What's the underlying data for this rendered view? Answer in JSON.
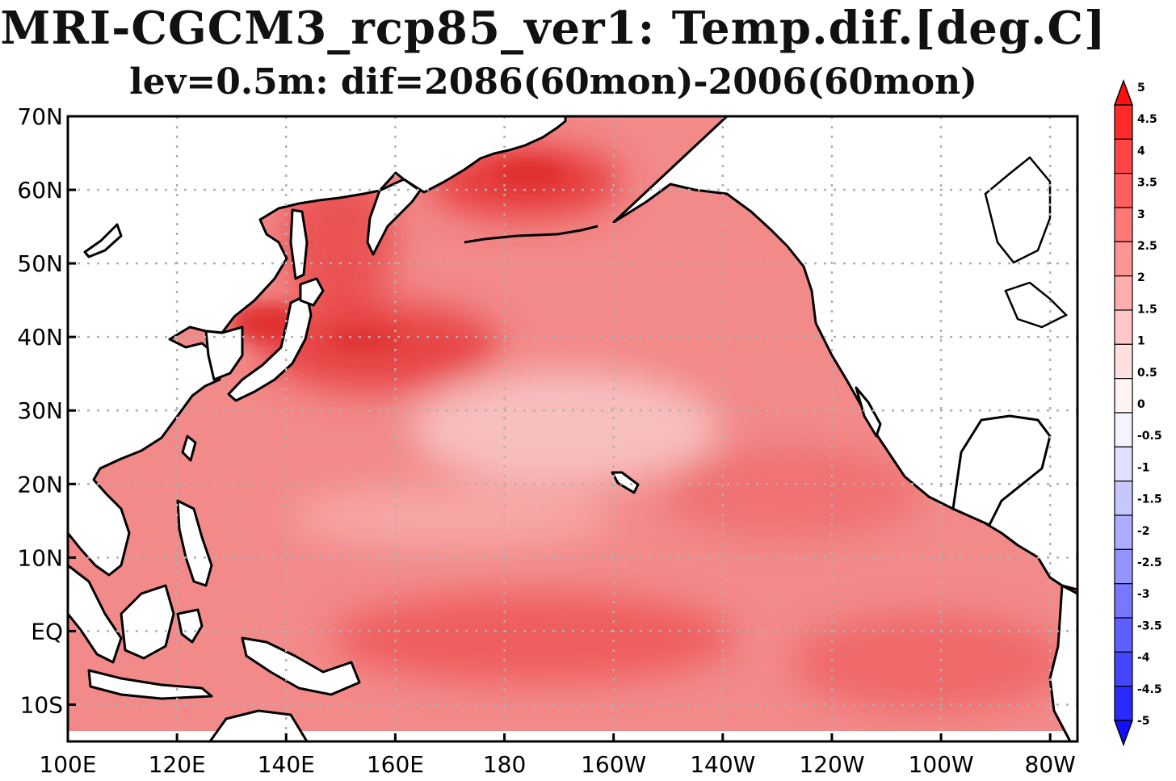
{
  "title": "MRI-CGCM3_rcp85_ver1: Temp.dif.[deg.C]",
  "subtitle": "lev=0.5m: dif=2086(60mon)-2006(60mon)",
  "map": {
    "lon_range": [
      100,
      285
    ],
    "lat_range": [
      -15,
      70
    ],
    "x_ticks": [
      {
        "lon": 100,
        "label": "100E"
      },
      {
        "lon": 120,
        "label": "120E"
      },
      {
        "lon": 140,
        "label": "140E"
      },
      {
        "lon": 160,
        "label": "160E"
      },
      {
        "lon": 180,
        "label": "180"
      },
      {
        "lon": 200,
        "label": "160W"
      },
      {
        "lon": 220,
        "label": "140W"
      },
      {
        "lon": 240,
        "label": "120W"
      },
      {
        "lon": 260,
        "label": "100W"
      },
      {
        "lon": 280,
        "label": "80W"
      }
    ],
    "y_ticks": [
      {
        "lat": 70,
        "label": "70N"
      },
      {
        "lat": 60,
        "label": "60N"
      },
      {
        "lat": 50,
        "label": "50N"
      },
      {
        "lat": 40,
        "label": "40N"
      },
      {
        "lat": 30,
        "label": "30N"
      },
      {
        "lat": 20,
        "label": "20N"
      },
      {
        "lat": 10,
        "label": "10N"
      },
      {
        "lat": 0,
        "label": "EQ"
      },
      {
        "lat": -10,
        "label": "10S"
      }
    ],
    "grid": true,
    "ocean_base_color": "#f38a8a",
    "land_color": "#ffffff"
  },
  "colorbar": {
    "levels": [
      "5",
      "4.5",
      "4",
      "3.5",
      "3",
      "2.5",
      "2",
      "1.5",
      "1",
      "0.5",
      "0",
      "-0.5",
      "-1",
      "-1.5",
      "-2",
      "-2.5",
      "-3",
      "-3.5",
      "-4",
      "-4.5",
      "-5"
    ],
    "colors": [
      "#ff1010",
      "#ff2a2a",
      "#ff4545",
      "#ff5f5f",
      "#ff7878",
      "#ff9494",
      "#ffadad",
      "#ffc7c7",
      "#ffe0e0",
      "#fff4f4",
      "#f4f4ff",
      "#e0e0ff",
      "#c7c7ff",
      "#adadff",
      "#9494ff",
      "#7878ff",
      "#5f5fff",
      "#4545ff",
      "#2a2aff",
      "#1010ff"
    ]
  }
}
